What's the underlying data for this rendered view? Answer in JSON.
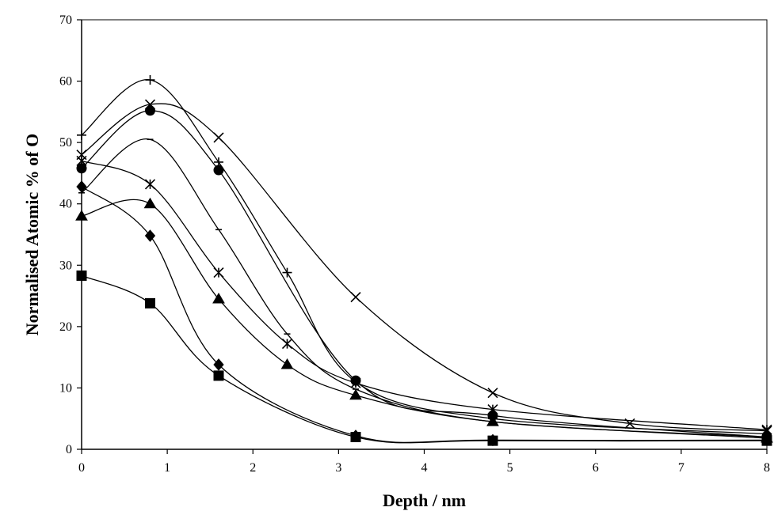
{
  "chart_data": {
    "type": "line",
    "title": "",
    "xlabel": "Depth / nm",
    "ylabel": "Normalised Atomic % of O",
    "xlim": [
      0,
      8
    ],
    "ylim": [
      0,
      70
    ],
    "xticks": [
      0,
      1,
      2,
      3,
      4,
      5,
      6,
      7,
      8
    ],
    "yticks": [
      0,
      10,
      20,
      30,
      40,
      50,
      60,
      70
    ],
    "grid": false,
    "legend": "none",
    "series": [
      {
        "marker": "plus",
        "x": [
          0,
          0.8,
          1.6,
          2.4,
          3.2,
          4.8,
          8
        ],
        "y": [
          51.2,
          60.2,
          46.8,
          28.8,
          11,
          5,
          2.5
        ]
      },
      {
        "marker": "x",
        "x": [
          0,
          0.8,
          1.6,
          3.2,
          4.8,
          6.4,
          8
        ],
        "y": [
          48,
          56.2,
          50.8,
          24.8,
          9.2,
          4.2,
          3
        ]
      },
      {
        "marker": "circle",
        "x": [
          0,
          0.8,
          1.6,
          3.2,
          4.8,
          8
        ],
        "y": [
          45.8,
          55.2,
          45.5,
          11.2,
          5.5,
          2
        ]
      },
      {
        "marker": "dash",
        "x": [
          0,
          0.8,
          1.6,
          2.4,
          3.2,
          4.8,
          8
        ],
        "y": [
          41.8,
          50.5,
          35.8,
          18.8,
          9.8,
          4.5,
          2
        ]
      },
      {
        "marker": "star",
        "x": [
          0,
          0.8,
          1.6,
          2.4,
          3.2,
          4.8,
          8
        ],
        "y": [
          47,
          43.2,
          28.8,
          17.2,
          10.8,
          6.5,
          3.2
        ]
      },
      {
        "marker": "triangle",
        "x": [
          0,
          0.8,
          1.6,
          2.4,
          3.2,
          4.8,
          8
        ],
        "y": [
          38,
          40,
          24.5,
          13.8,
          8.8,
          4.5,
          1.8
        ]
      },
      {
        "marker": "diamond",
        "x": [
          0,
          0.8,
          1.6,
          3.2,
          4.8,
          8
        ],
        "y": [
          42.8,
          34.8,
          13.8,
          2.2,
          1.5,
          1.5
        ]
      },
      {
        "marker": "square",
        "x": [
          0,
          0.8,
          1.6,
          3.2,
          4.8,
          8
        ],
        "y": [
          28.3,
          23.8,
          12,
          2,
          1.4,
          1.4
        ]
      }
    ]
  }
}
